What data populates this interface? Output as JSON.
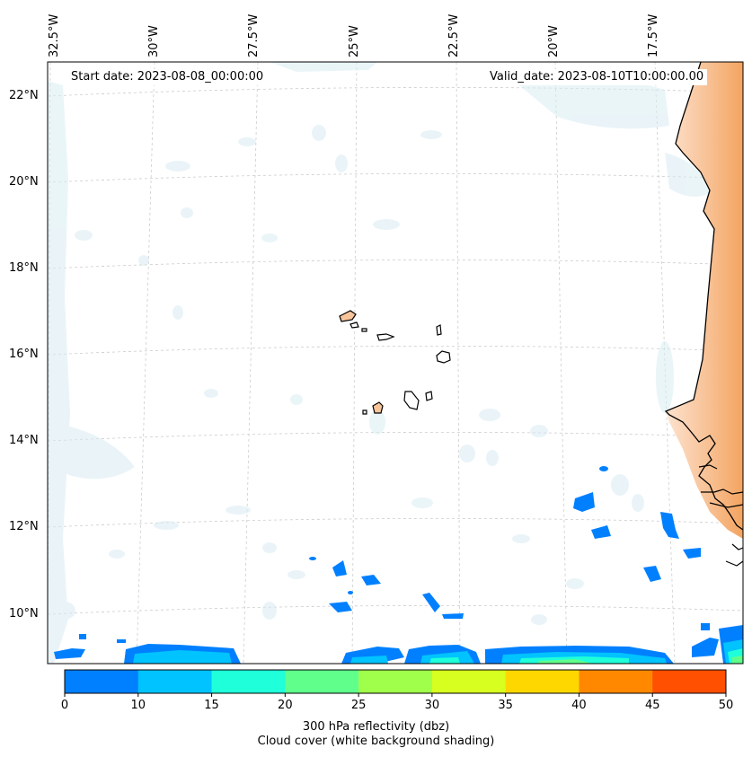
{
  "map": {
    "start_date_text": "Start date: 2023-08-08_00:00:00",
    "valid_date_text": "Valid_date: 2023-08-10T10:00:00.00",
    "latitude_labels": [
      "22°N",
      "20°N",
      "18°N",
      "16°N",
      "14°N",
      "12°N",
      "10°N"
    ],
    "longitude_labels": [
      "32.5°W",
      "30°W",
      "27.5°W",
      "25°W",
      "22.5°W",
      "20°W",
      "17.5°W"
    ],
    "colors": {
      "land_shading": "#f4a460",
      "cloud_shading": "#d9ecf3",
      "coastline": "#000000",
      "gridline": "#cccccc"
    }
  },
  "colorbar": {
    "ticks": [
      "0",
      "10",
      "15",
      "20",
      "25",
      "30",
      "35",
      "40",
      "45",
      "50"
    ],
    "colors": [
      "#0080ff",
      "#00c3ff",
      "#1fffd9",
      "#60ff8c",
      "#a0ff4b",
      "#d7ff20",
      "#ffd700",
      "#ff8800",
      "#ff4f00"
    ],
    "label_line1": "300 hPa reflectivity (dbz)",
    "label_line2": "Cloud cover (white background shading)"
  }
}
